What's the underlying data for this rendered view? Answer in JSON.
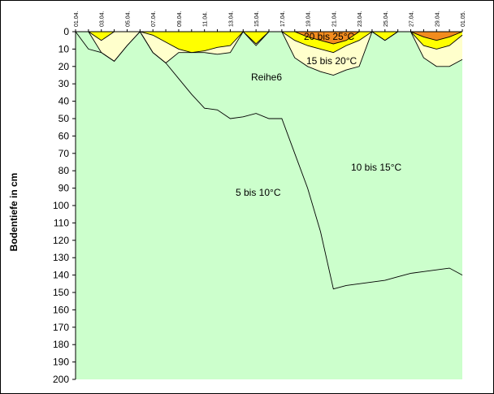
{
  "chart_data": {
    "type": "area",
    "title": "",
    "xlabel": "",
    "ylabel": "Bodentiefe in cm",
    "ylim": [
      0,
      200
    ],
    "y_inverted": true,
    "y_ticks": [
      0,
      10,
      20,
      30,
      40,
      50,
      60,
      70,
      80,
      90,
      100,
      110,
      120,
      130,
      140,
      150,
      160,
      170,
      180,
      190,
      200
    ],
    "x_tick_labels": [
      "01.04.",
      "03.04.",
      "05.04.",
      "07.04.",
      "09.04.",
      "11.04.",
      "13.04.",
      "15.04.",
      "17.04.",
      "19.04.",
      "21.04.",
      "23.04.",
      "25.04.",
      "27.04.",
      "29.04.",
      "01.05."
    ],
    "grid": false,
    "legend": "none",
    "x": [
      "01.04.",
      "02.04.",
      "03.04.",
      "04.04.",
      "05.04.",
      "06.04.",
      "07.04.",
      "08.04.",
      "09.04.",
      "10.04.",
      "11.04.",
      "12.04.",
      "13.04.",
      "14.04.",
      "15.04.",
      "16.04.",
      "17.04.",
      "18.04.",
      "19.04.",
      "20.04.",
      "21.04.",
      "22.04.",
      "23.04.",
      "24.04.",
      "25.04.",
      "26.04.",
      "27.04.",
      "28.04.",
      "29.04.",
      "30.04.",
      "01.05."
    ],
    "boundaries": [
      {
        "name": "20 bis 25°C",
        "bottom": [
          0,
          0,
          0,
          0,
          0,
          0,
          0,
          0,
          0,
          0,
          0,
          0,
          0,
          0,
          0,
          0,
          0,
          0,
          3,
          5,
          7,
          5,
          0,
          0,
          0,
          0,
          0,
          3,
          5,
          3,
          0
        ]
      },
      {
        "name": "15 bis 20°C",
        "bottom": [
          0,
          0,
          5,
          0,
          0,
          0,
          2,
          6,
          10,
          12,
          11,
          9,
          8,
          0,
          7,
          0,
          0,
          5,
          8,
          10,
          12,
          8,
          5,
          0,
          5,
          0,
          0,
          8,
          10,
          8,
          2
        ]
      },
      {
        "name": "10 bis 15°C",
        "bottom": [
          0,
          0,
          12,
          17,
          8,
          0,
          12,
          18,
          12,
          12,
          12,
          13,
          12,
          0,
          8,
          0,
          0,
          15,
          20,
          23,
          25,
          22,
          20,
          0,
          5,
          0,
          0,
          15,
          20,
          20,
          16
        ]
      },
      {
        "name": "5 bis 10°C",
        "bottom": [
          0,
          10,
          12,
          17,
          8,
          0,
          12,
          18,
          27,
          36,
          44,
          45,
          50,
          49,
          47,
          50,
          50,
          70,
          90,
          115,
          148,
          146,
          145,
          144,
          143,
          141,
          139,
          138,
          137,
          136,
          140
        ]
      }
    ],
    "series": [
      {
        "name": "20 bis 25°C",
        "color": "#f28c1e"
      },
      {
        "name": "15 bis 20°C",
        "color": "#ffff00"
      },
      {
        "name": "Reihe6",
        "color": "#ffffcc"
      },
      {
        "name": "10 bis 15°C",
        "color": "#ffffcc"
      },
      {
        "name": "5 bis 10°C",
        "color": "#ccffcc"
      }
    ],
    "annotations": [
      "20 bis 25°C",
      "15 bis 20°C",
      "Reihe6",
      "10 bis 15°C",
      "5 bis 10°C"
    ]
  }
}
